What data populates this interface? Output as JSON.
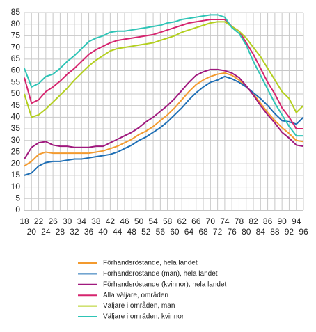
{
  "chart_data": {
    "type": "line",
    "x": [
      18,
      20,
      22,
      24,
      26,
      28,
      30,
      32,
      34,
      36,
      38,
      40,
      42,
      44,
      46,
      48,
      50,
      52,
      54,
      56,
      58,
      60,
      62,
      64,
      66,
      68,
      70,
      72,
      74,
      76,
      78,
      80,
      82,
      84,
      86,
      88,
      90,
      92,
      94,
      96
    ],
    "xlim": [
      18,
      96
    ],
    "xticks": [
      18,
      20,
      22,
      24,
      26,
      28,
      30,
      32,
      34,
      36,
      38,
      40,
      42,
      44,
      46,
      48,
      50,
      52,
      54,
      56,
      58,
      60,
      62,
      64,
      66,
      68,
      70,
      72,
      74,
      76,
      78,
      80,
      82,
      84,
      86,
      88,
      90,
      92,
      94,
      96
    ],
    "ylim": [
      0,
      85
    ],
    "yticks": [
      0,
      5,
      10,
      15,
      20,
      25,
      30,
      35,
      40,
      45,
      50,
      55,
      60,
      65,
      70,
      75,
      80,
      85
    ],
    "grid": true,
    "series": [
      {
        "name": "Förhandsröstande, hela landet",
        "color": "#f39a2e",
        "values": [
          19,
          21,
          24,
          25,
          24.5,
          24.5,
          24.5,
          24.5,
          24.5,
          24.5,
          25,
          25.5,
          26.5,
          27.5,
          29,
          30.5,
          32.5,
          34,
          36,
          38.5,
          41,
          44,
          47.5,
          51,
          54,
          56,
          57.5,
          58.5,
          59,
          58,
          56,
          53,
          50,
          46,
          42,
          38.5,
          35.5,
          33,
          30,
          29.5
        ]
      },
      {
        "name": "Förhandsröstande (män), hela landet",
        "color": "#1f6fb5",
        "values": [
          15,
          16,
          19,
          20.5,
          21,
          21,
          21.5,
          22,
          22,
          22.5,
          23,
          23.5,
          24,
          25,
          26.5,
          28,
          30,
          31.5,
          33.5,
          35.5,
          38,
          41,
          44,
          47.5,
          50.5,
          53,
          55,
          56,
          57.5,
          56.5,
          55,
          53,
          50.5,
          48,
          45,
          41.5,
          38.5,
          38,
          37,
          40
        ]
      },
      {
        "name": "Förhandsröstande (kvinnor), hela landet",
        "color": "#a0197e",
        "values": [
          22,
          27,
          29,
          29.5,
          28,
          27.5,
          27.5,
          27,
          27,
          27,
          27.5,
          27.5,
          29,
          30.5,
          32,
          33.5,
          35.5,
          38,
          40,
          42.5,
          45,
          48,
          51.5,
          55,
          58,
          59.5,
          60.5,
          60.5,
          60,
          59,
          57,
          53.5,
          49.5,
          45,
          41,
          37.5,
          33.5,
          31,
          28,
          27.5
        ]
      },
      {
        "name": "Alla väljare, områden",
        "color": "#d6246e",
        "values": [
          57,
          46,
          47.5,
          51,
          53,
          55.5,
          58.5,
          61,
          64,
          67,
          69,
          70.5,
          72,
          73,
          73.5,
          74,
          74.5,
          75,
          75.5,
          76.5,
          77.5,
          78.5,
          79.5,
          80.5,
          81,
          81.5,
          82,
          82,
          82,
          79,
          77,
          72,
          67,
          61,
          55,
          50,
          44,
          40,
          35,
          35
        ]
      },
      {
        "name": "Väljare i områden, män",
        "color": "#b3cf1f",
        "values": [
          50,
          40,
          41,
          43.5,
          46.5,
          49.5,
          52.5,
          56,
          59,
          62,
          64.5,
          66.5,
          68.5,
          69.5,
          70,
          70.5,
          71,
          71.5,
          72,
          73,
          74,
          75,
          76.5,
          77.5,
          78.5,
          79.5,
          80.5,
          81,
          81,
          79,
          77,
          74,
          70,
          66,
          61,
          56,
          51,
          48,
          42,
          45
        ]
      },
      {
        "name": "Väljare i områden, kvinnor",
        "color": "#2ec4b6",
        "values": [
          61,
          53,
          54.5,
          57.5,
          58.5,
          61,
          64,
          66.5,
          69.5,
          72.5,
          74,
          75,
          76.5,
          77,
          77,
          77.5,
          78,
          78.5,
          79,
          79.5,
          80.5,
          81,
          82,
          82.5,
          83,
          83.5,
          84,
          84,
          83,
          78.5,
          76,
          71,
          64,
          58,
          52,
          46,
          41,
          36,
          32,
          32
        ]
      }
    ]
  }
}
